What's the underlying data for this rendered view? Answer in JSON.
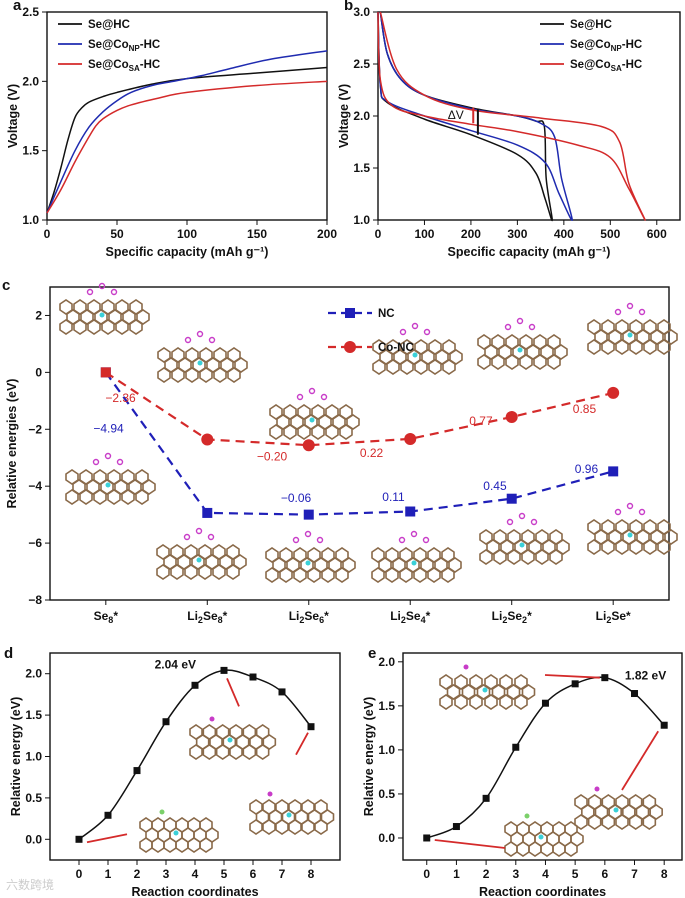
{
  "chart_data": [
    {
      "id": "a",
      "panel_label": "a",
      "type": "line",
      "xlabel": "Specific capacity (mAh g⁻¹)",
      "ylabel": "Voltage (V)",
      "xlim": [
        0,
        200
      ],
      "ylim": [
        1.0,
        2.5
      ],
      "xticks": [
        0,
        50,
        100,
        150,
        200
      ],
      "yticks": [
        1.0,
        1.5,
        2.0,
        2.5
      ],
      "ytick_decimals": 1,
      "legend_position": "top-left",
      "series": [
        {
          "name": {
            "base": "Se@HC",
            "sub": "",
            "tail": ""
          },
          "color": "#111111",
          "x": [
            0,
            5,
            10,
            15,
            20,
            25,
            30,
            40,
            50,
            75,
            100,
            150,
            200
          ],
          "y": [
            1.05,
            1.2,
            1.38,
            1.58,
            1.74,
            1.81,
            1.85,
            1.89,
            1.92,
            1.98,
            2.02,
            2.06,
            2.1
          ]
        },
        {
          "name": {
            "base": "Se@Co",
            "sub": "NP",
            "tail": "-HC"
          },
          "color": "#1f2bb0",
          "x": [
            0,
            10,
            20,
            30,
            40,
            50,
            60,
            75,
            90,
            110,
            130,
            160,
            200
          ],
          "y": [
            1.05,
            1.28,
            1.5,
            1.67,
            1.78,
            1.86,
            1.92,
            1.97,
            2.0,
            2.04,
            2.09,
            2.16,
            2.22
          ]
        },
        {
          "name": {
            "base": "Se@Co",
            "sub": "SA",
            "tail": "-HC"
          },
          "color": "#d42a2a",
          "x": [
            0,
            10,
            20,
            30,
            35,
            40,
            50,
            60,
            80,
            100,
            150,
            200
          ],
          "y": [
            1.05,
            1.22,
            1.42,
            1.6,
            1.68,
            1.73,
            1.79,
            1.83,
            1.88,
            1.92,
            1.97,
            2.0
          ]
        }
      ]
    },
    {
      "id": "b",
      "panel_label": "b",
      "type": "line",
      "xlabel": "Specific capacity (mAh g⁻¹)",
      "ylabel": "Voltage (V)",
      "xlim": [
        0,
        650
      ],
      "ylim": [
        1.0,
        3.0
      ],
      "xticks": [
        0,
        100,
        200,
        300,
        400,
        500,
        600
      ],
      "yticks": [
        1.0,
        1.5,
        2.0,
        2.5,
        3.0
      ],
      "ytick_decimals": 1,
      "legend_position": "top-right",
      "annotation": "ΔV",
      "series": [
        {
          "name": {
            "base": "Se@HC",
            "sub": "",
            "tail": ""
          },
          "color": "#111111",
          "x": [
            0,
            5,
            20,
            100,
            200,
            300,
            340,
            360,
            375,
            362,
            358,
            340,
            300,
            200,
            100,
            50,
            20,
            5
          ],
          "y": [
            3.0,
            2.3,
            2.13,
            1.97,
            1.82,
            1.63,
            1.45,
            1.2,
            1.0,
            1.4,
            1.9,
            1.95,
            2.0,
            2.08,
            2.2,
            2.35,
            2.6,
            3.0
          ]
        },
        {
          "name": {
            "base": "Se@Co",
            "sub": "NP",
            "tail": "-HC"
          },
          "color": "#1f2bb0",
          "x": [
            0,
            5,
            20,
            100,
            200,
            300,
            360,
            390,
            418,
            395,
            380,
            350,
            300,
            200,
            100,
            50,
            20,
            5
          ],
          "y": [
            3.0,
            2.3,
            2.14,
            2.0,
            1.86,
            1.72,
            1.55,
            1.25,
            1.0,
            1.4,
            1.8,
            1.93,
            2.0,
            2.07,
            2.2,
            2.35,
            2.6,
            3.0
          ]
        },
        {
          "name": {
            "base": "Se@Co",
            "sub": "SA",
            "tail": "-HC"
          },
          "color": "#d42a2a",
          "x": [
            0,
            5,
            30,
            100,
            200,
            300,
            430,
            500,
            540,
            575,
            540,
            520,
            480,
            350,
            200,
            100,
            40,
            5
          ],
          "y": [
            3.0,
            2.35,
            2.1,
            2.0,
            1.92,
            1.85,
            1.72,
            1.6,
            1.3,
            1.0,
            1.35,
            1.75,
            1.9,
            1.98,
            2.06,
            2.2,
            2.45,
            3.0
          ]
        }
      ]
    },
    {
      "id": "c",
      "panel_label": "c",
      "type": "line",
      "xlabel": "",
      "ylabel": "Relative energies (eV)",
      "categories": [
        "Se8*",
        "Li2Se8*",
        "Li2Se6*",
        "Li2Se4*",
        "Li2Se2*",
        "Li2Se*"
      ],
      "ylim": [
        -8,
        3
      ],
      "yticks": [
        -8,
        -6,
        -4,
        -2,
        0,
        2
      ],
      "ytick_decimals": 0,
      "legend_position": "top-center",
      "series": [
        {
          "name": "NC",
          "color": "#1f1fb8",
          "marker": "square",
          "values": [
            0,
            -4.94,
            -5.0,
            -4.89,
            -4.44,
            -3.48
          ],
          "step_labels": [
            "-4.94",
            "-0.06",
            "0.11",
            "0.45",
            "0.96"
          ]
        },
        {
          "name": "Co-NC",
          "color": "#d42a2a",
          "marker": "circle",
          "values": [
            0,
            -2.36,
            -2.56,
            -2.34,
            -1.57,
            -0.72
          ],
          "step_labels": [
            "-2.36",
            "-0.20",
            "0.22",
            "0.77",
            "0.85"
          ]
        }
      ]
    },
    {
      "id": "d",
      "panel_label": "d",
      "type": "line",
      "xlabel": "Reaction coordinates",
      "ylabel": "Relative energy (eV)",
      "xlim": [
        -1,
        9
      ],
      "ylim": [
        -0.25,
        2.25
      ],
      "xticks": [
        0,
        1,
        2,
        3,
        4,
        5,
        6,
        7,
        8
      ],
      "yticks": [
        0.0,
        0.5,
        1.0,
        1.5,
        2.0
      ],
      "ytick_decimals": 1,
      "annotation": "2.04 eV",
      "series": [
        {
          "name": "d",
          "color": "#111111",
          "marker": "square",
          "x": [
            0,
            1,
            2,
            3,
            4,
            5,
            6,
            7,
            8
          ],
          "y": [
            0.0,
            0.29,
            0.83,
            1.42,
            1.86,
            2.04,
            1.96,
            1.78,
            1.36
          ]
        }
      ]
    },
    {
      "id": "e",
      "panel_label": "e",
      "type": "line",
      "xlabel": "Reaction coordinates",
      "ylabel": "Relative energy (eV)",
      "xlim": [
        -0.8,
        8.6
      ],
      "ylim": [
        -0.25,
        2.1
      ],
      "xticks": [
        0,
        1,
        2,
        3,
        4,
        5,
        6,
        7,
        8
      ],
      "yticks": [
        0.0,
        0.5,
        1.0,
        1.5,
        2.0
      ],
      "ytick_decimals": 1,
      "annotation": "1.82 eV",
      "series": [
        {
          "name": "e",
          "color": "#111111",
          "marker": "square",
          "x": [
            0,
            1,
            2,
            3,
            4,
            5,
            6,
            7,
            8
          ],
          "y": [
            0.0,
            0.13,
            0.45,
            1.03,
            1.53,
            1.75,
            1.82,
            1.64,
            1.28
          ]
        }
      ]
    }
  ],
  "watermark": "六数跨境"
}
